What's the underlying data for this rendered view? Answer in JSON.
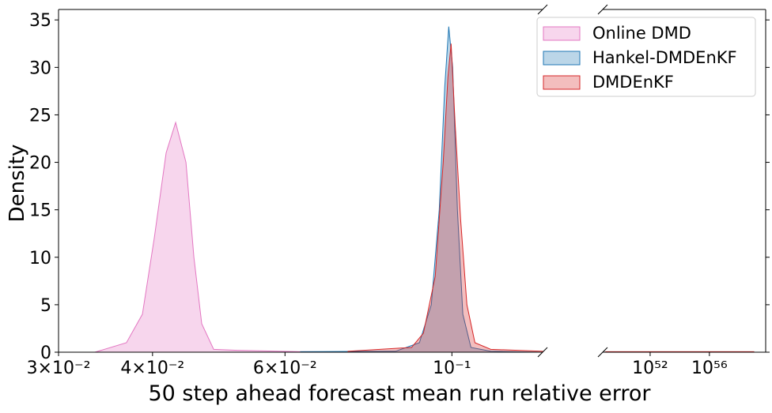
{
  "chart_data": {
    "type": "density",
    "xlabel": "50 step ahead forecast mean run relative error",
    "ylabel": "Density",
    "xscale": "log",
    "ylim": [
      0,
      36.1
    ],
    "yticks": [
      0,
      5,
      10,
      15,
      20,
      25,
      30,
      35
    ],
    "legend": "upper right",
    "panels": [
      {
        "xlim": [
          0.03,
          0.132
        ],
        "xticks": [
          {
            "value": 0.03,
            "label": "3×10⁻²"
          },
          {
            "value": 0.04,
            "label": "4×10⁻²"
          },
          {
            "value": 0.06,
            "label": "6×10⁻²"
          },
          {
            "value": 0.1,
            "label": "10⁻¹"
          }
        ]
      },
      {
        "xlim": [
          6.3e+48,
          6.3e+59
        ],
        "xticks": [
          {
            "value": 1e+52,
            "label": "10⁵²"
          },
          {
            "value": 1e+56,
            "label": "10⁵⁶"
          }
        ]
      }
    ],
    "series": [
      {
        "name": "Online DMD",
        "color": "#e377c2",
        "x": [
          0.03353,
          0.03693,
          0.03878,
          0.04021,
          0.0417,
          0.04293,
          0.04431,
          0.0454,
          0.0465,
          0.04823,
          0.05184,
          0.06293,
          0.08418,
          0.132
        ],
        "values": [
          0,
          1,
          4,
          12,
          21,
          24.2,
          20,
          10,
          3,
          0.3,
          0.2,
          0.05,
          0,
          0
        ]
      },
      {
        "name": "Hankel-DMDEnKF",
        "color": "#1f77b4",
        "x": [
          0.06293,
          0.08418,
          0.09053,
          0.09389,
          0.0962,
          0.09784,
          0.09904,
          0.10024,
          0.1017,
          0.1034,
          0.106,
          0.1126,
          0.132
        ],
        "values": [
          0.05,
          0.1,
          1,
          5,
          15,
          28,
          34.3,
          30,
          15,
          4,
          0.5,
          0.1,
          0
        ]
      },
      {
        "name": "DMDEnKF",
        "color": "#d62728",
        "x": [
          0.07277,
          0.08839,
          0.09165,
          0.09503,
          0.09737,
          0.09879,
          0.09976,
          0.101,
          0.1027,
          0.1047,
          0.1073,
          0.1126,
          0.132,
          1e+49,
          1e+59
        ],
        "values": [
          0.1,
          0.5,
          2,
          8,
          20,
          29,
          32.5,
          24,
          14,
          5,
          1,
          0.3,
          0.1,
          0.05,
          0.05
        ]
      }
    ]
  }
}
